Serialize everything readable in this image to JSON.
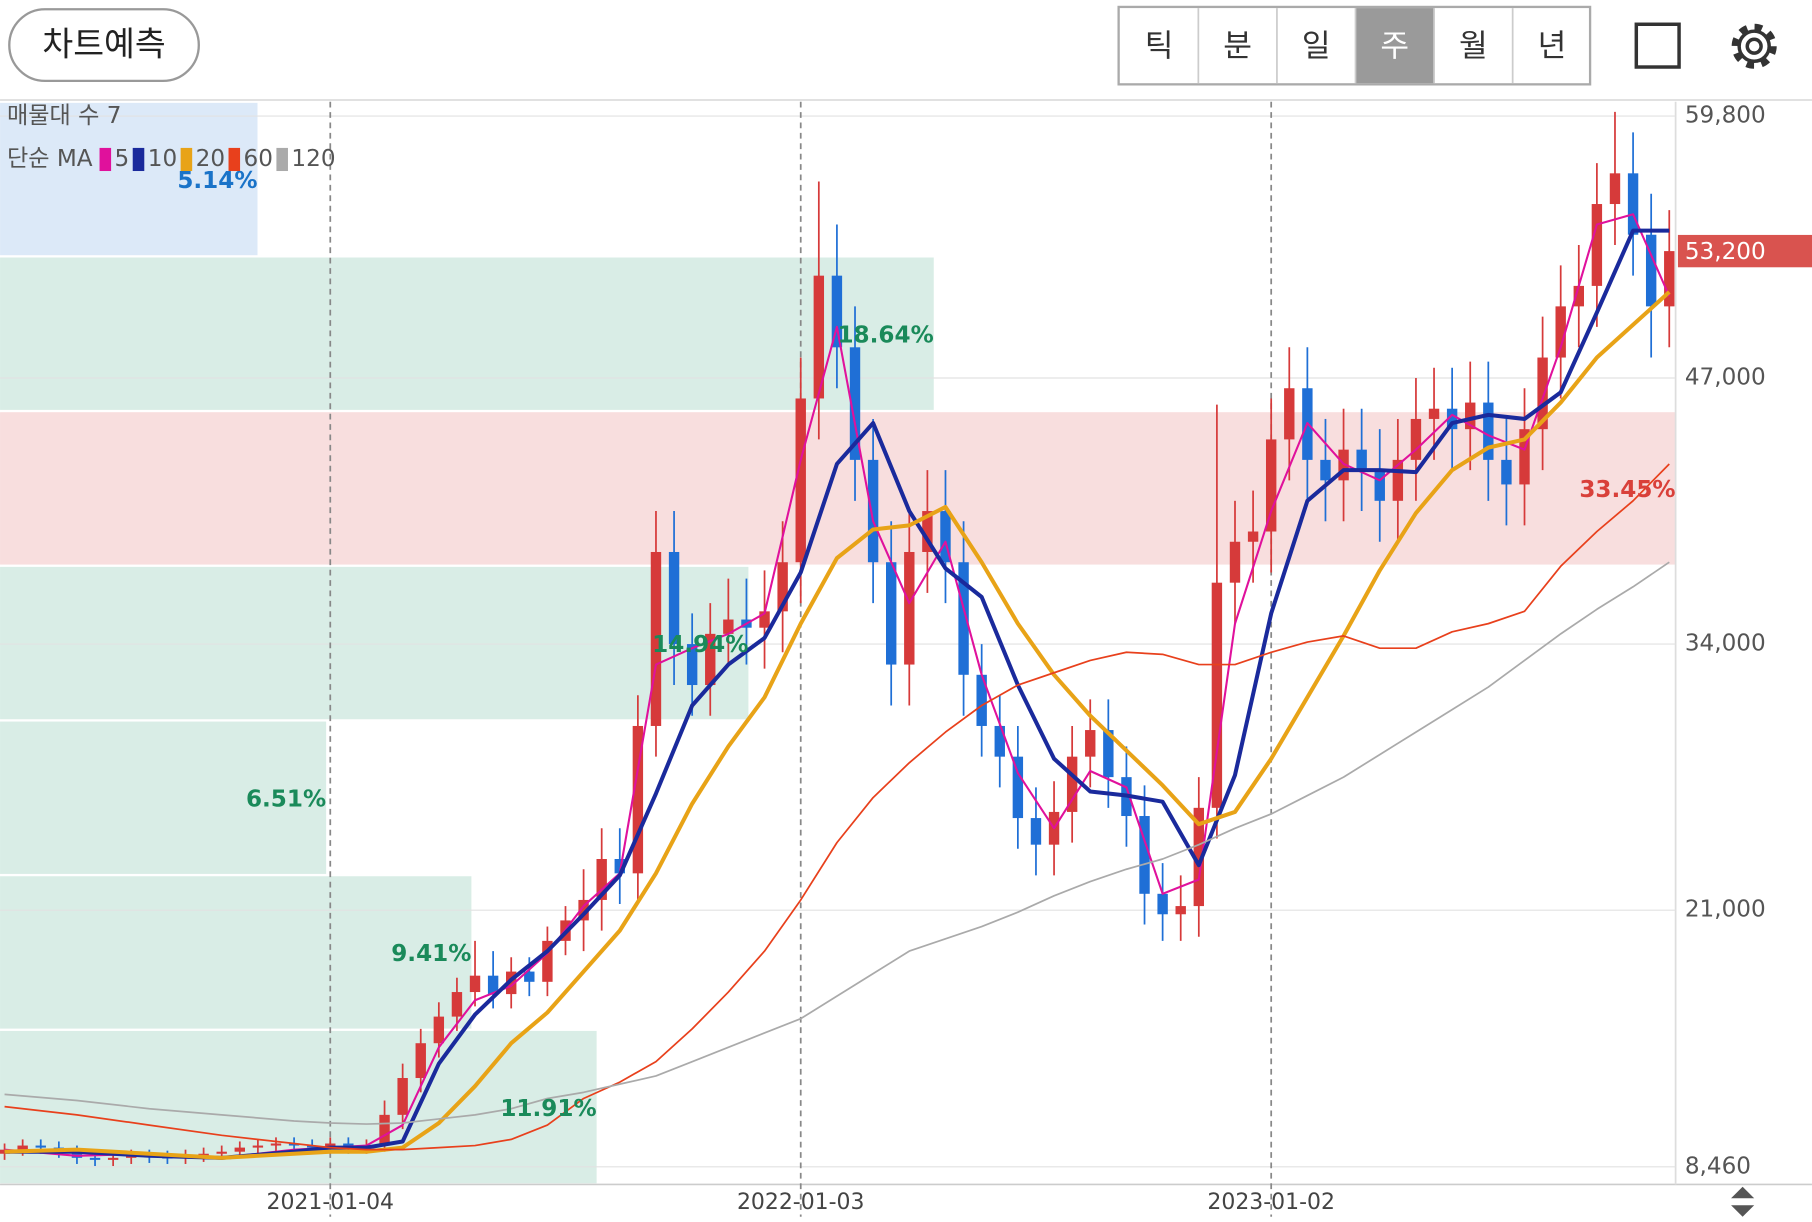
{
  "header": {
    "button": "차트예측",
    "tabs": [
      "틱",
      "분",
      "일",
      "주",
      "월",
      "년"
    ],
    "selected": 3
  },
  "chart_data": {
    "type": "candlestick",
    "xlim": [
      -0.5,
      184.7
    ],
    "xticks": [
      {
        "value": 36,
        "label": "2021-01-04"
      },
      {
        "value": 88,
        "label": "2022-01-03"
      },
      {
        "value": 140,
        "label": "2023-01-02"
      }
    ],
    "ylim": [
      7600,
      60500
    ],
    "yticks": [
      {
        "value": 59800,
        "label": "59,800"
      },
      {
        "value": 47000,
        "label": "47,000"
      },
      {
        "value": 34000,
        "label": "34,000"
      },
      {
        "value": 21000,
        "label": "21,000"
      },
      {
        "value": 8460,
        "label": "8,460"
      }
    ],
    "grid": true,
    "up_color": "#d63a3a",
    "down_color": "#1f6fd6",
    "last_price": {
      "value": 53200,
      "label": "53,200",
      "color": "#d9534f"
    },
    "candles": {
      "x": [
        0,
        2,
        4,
        6,
        8,
        10,
        12,
        14,
        16,
        18,
        20,
        22,
        24,
        26,
        28,
        30,
        32,
        34,
        36,
        38,
        40,
        42,
        44,
        46,
        48,
        50,
        52,
        54,
        56,
        58,
        60,
        62,
        64,
        66,
        68,
        70,
        72,
        74,
        76,
        78,
        80,
        82,
        84,
        86,
        88,
        90,
        92,
        94,
        96,
        98,
        100,
        102,
        104,
        106,
        108,
        110,
        112,
        114,
        116,
        118,
        120,
        122,
        124,
        126,
        128,
        130,
        132,
        134,
        136,
        138,
        140,
        142,
        144,
        146,
        148,
        150,
        152,
        154,
        156,
        158,
        160,
        162,
        164,
        166,
        168,
        170,
        172,
        174,
        176,
        178,
        180,
        182,
        184
      ],
      "open": [
        9100,
        9300,
        9500,
        9400,
        9200,
        8900,
        8800,
        8900,
        9000,
        8950,
        8900,
        9000,
        9100,
        9200,
        9400,
        9500,
        9600,
        9500,
        9400,
        9600,
        9400,
        9500,
        11000,
        12800,
        14500,
        15800,
        17000,
        17800,
        16900,
        18000,
        17500,
        19500,
        20500,
        21500,
        23500,
        22800,
        30000,
        38500,
        34000,
        32000,
        34500,
        35200,
        34800,
        35600,
        38000,
        46000,
        52000,
        48500,
        43000,
        38000,
        33000,
        38500,
        40500,
        38000,
        32500,
        30000,
        28500,
        25500,
        24200,
        25800,
        28500,
        29800,
        27500,
        25600,
        21800,
        20800,
        21200,
        26000,
        37000,
        39000,
        39500,
        44000,
        46500,
        43000,
        42000,
        43500,
        42500,
        41000,
        43000,
        45000,
        45500,
        44500,
        45800,
        43000,
        41800,
        44500,
        48000,
        50500,
        51500,
        55500,
        57000,
        54000,
        50500
      ],
      "high": [
        9600,
        9800,
        9800,
        9700,
        9500,
        9200,
        9200,
        9300,
        9300,
        9250,
        9300,
        9400,
        9500,
        9700,
        9800,
        9900,
        9900,
        9800,
        9900,
        9900,
        9800,
        11700,
        13500,
        15200,
        16500,
        17700,
        19500,
        19000,
        18700,
        18700,
        20200,
        21200,
        23000,
        25000,
        25000,
        31500,
        40500,
        40500,
        35500,
        36000,
        37200,
        37200,
        37600,
        40000,
        48000,
        56600,
        54500,
        50500,
        45000,
        40000,
        40500,
        42500,
        42500,
        40000,
        34000,
        31500,
        30000,
        27000,
        27300,
        30000,
        31300,
        31300,
        29000,
        27100,
        23300,
        22700,
        27500,
        45700,
        41000,
        41500,
        46000,
        48500,
        48500,
        45000,
        45500,
        45500,
        44500,
        45000,
        47000,
        47500,
        47500,
        47800,
        47800,
        45000,
        46500,
        50000,
        52500,
        53500,
        57500,
        60000,
        59000,
        56000,
        55200
      ],
      "low": [
        8800,
        9000,
        9100,
        8900,
        8600,
        8500,
        8500,
        8600,
        8650,
        8600,
        8600,
        8700,
        8800,
        8900,
        9100,
        9200,
        9200,
        9100,
        9100,
        9100,
        9100,
        9200,
        10300,
        12100,
        13800,
        15100,
        16300,
        16200,
        16200,
        16800,
        16800,
        18800,
        19000,
        20000,
        21300,
        21300,
        28500,
        32000,
        30500,
        30500,
        33000,
        33000,
        32800,
        33600,
        36000,
        44000,
        46500,
        41000,
        36000,
        31000,
        31000,
        36500,
        36000,
        30500,
        28500,
        27000,
        24000,
        22700,
        22700,
        24300,
        27000,
        26000,
        24100,
        20300,
        19500,
        19500,
        19700,
        24500,
        35000,
        37000,
        37500,
        42000,
        41000,
        40000,
        40000,
        40500,
        39000,
        39000,
        41000,
        43000,
        42500,
        42500,
        41000,
        39800,
        39800,
        42500,
        46000,
        48500,
        49500,
        53500,
        52000,
        48000,
        48500
      ],
      "close": [
        9300,
        9500,
        9400,
        9200,
        8900,
        8800,
        8900,
        9000,
        8950,
        8900,
        9000,
        9100,
        9200,
        9400,
        9500,
        9600,
        9500,
        9400,
        9600,
        9400,
        9500,
        11000,
        12800,
        14500,
        15800,
        17000,
        17800,
        16900,
        18000,
        17500,
        19500,
        20500,
        21500,
        23500,
        22800,
        30000,
        38500,
        34000,
        32000,
        34500,
        35200,
        34800,
        35600,
        38000,
        46000,
        52000,
        48500,
        43000,
        38000,
        33000,
        38500,
        40500,
        38000,
        32500,
        30000,
        28500,
        25500,
        24200,
        25800,
        28500,
        29800,
        27500,
        25600,
        21800,
        20800,
        21200,
        26000,
        37000,
        39000,
        39500,
        44000,
        46500,
        43000,
        42000,
        43500,
        42500,
        41000,
        43000,
        45000,
        45500,
        44500,
        45800,
        43000,
        41800,
        44500,
        48000,
        50500,
        51500,
        55500,
        57000,
        54000,
        50500,
        53200
      ]
    },
    "ma": {
      "title": "단순 MA",
      "x": [
        0,
        8,
        16,
        24,
        32,
        36,
        40,
        44,
        48,
        52,
        56,
        60,
        64,
        68,
        72,
        76,
        80,
        84,
        88,
        92,
        96,
        100,
        104,
        108,
        112,
        116,
        120,
        124,
        128,
        132,
        136,
        140,
        144,
        148,
        152,
        156,
        160,
        164,
        168,
        172,
        176,
        180,
        184
      ],
      "series": [
        {
          "name": "5",
          "color": "#e0119c",
          "width": 1.8,
          "values": [
            9300,
            9000,
            9100,
            8900,
            9300,
            9400,
            9500,
            10500,
            14300,
            16600,
            17300,
            18900,
            21200,
            22800,
            33000,
            33800,
            34500,
            35500,
            43000,
            49500,
            40000,
            36000,
            39000,
            32500,
            27700,
            25000,
            27800,
            27000,
            21800,
            22500,
            35000,
            40500,
            44800,
            42800,
            42000,
            43500,
            45200,
            44200,
            43500,
            48500,
            54500,
            55000,
            51000
          ]
        },
        {
          "name": "10",
          "color": "#1a2a9c",
          "width": 3.5,
          "values": [
            9200,
            9200,
            9000,
            8900,
            9200,
            9400,
            9400,
            9700,
            13500,
            15900,
            17600,
            19000,
            20800,
            22700,
            26700,
            31000,
            33000,
            34300,
            37500,
            42800,
            44800,
            40500,
            37700,
            36300,
            32000,
            28400,
            26800,
            26600,
            26300,
            23200,
            27600,
            35500,
            41000,
            42500,
            42500,
            42400,
            44800,
            45200,
            45000,
            46300,
            50200,
            54200,
            54200
          ]
        },
        {
          "name": "20",
          "color": "#e8a317",
          "width": 3.5,
          "values": [
            9200,
            9300,
            9100,
            8900,
            9100,
            9200,
            9200,
            9400,
            10600,
            12400,
            14500,
            16000,
            18000,
            20000,
            22800,
            26200,
            29000,
            31400,
            35000,
            38200,
            39600,
            39800,
            40700,
            38000,
            35000,
            32500,
            30500,
            28800,
            27100,
            25200,
            25800,
            28400,
            31400,
            34400,
            37600,
            40400,
            42500,
            43600,
            44000,
            45800,
            48000,
            49600,
            51200
          ]
        },
        {
          "name": "60",
          "color": "#e8401c",
          "width": 1.5,
          "values": [
            11400,
            11000,
            10500,
            10000,
            9600,
            9400,
            9300,
            9300,
            9400,
            9500,
            9800,
            10500,
            11800,
            12600,
            13600,
            15200,
            17000,
            19000,
            21500,
            24300,
            26500,
            28200,
            29700,
            31000,
            32000,
            32600,
            33200,
            33600,
            33500,
            33000,
            33000,
            33600,
            34100,
            34400,
            33800,
            33800,
            34600,
            35000,
            35600,
            37800,
            39500,
            41000,
            42800
          ]
        },
        {
          "name": "120",
          "color": "#aaaaaa",
          "width": 1.5,
          "values": [
            12000,
            11700,
            11300,
            11000,
            10700,
            10600,
            10550,
            10600,
            10800,
            11000,
            11300,
            11800,
            12100,
            12500,
            12900,
            13600,
            14300,
            15000,
            15700,
            16800,
            17900,
            19000,
            19600,
            20200,
            20900,
            21700,
            22400,
            23000,
            23500,
            24200,
            25000,
            25700,
            26600,
            27500,
            28600,
            29700,
            30800,
            31900,
            33200,
            34500,
            35700,
            36800,
            38000
          ]
        }
      ]
    },
    "volume_profile": {
      "title": "매물대 수 7",
      "values": [
        5.14,
        18.64,
        33.45,
        14.94,
        6.51,
        9.41,
        11.91
      ],
      "value_labels": [
        "5.14%",
        "18.64%",
        "33.45%",
        "14.94%",
        "6.51%",
        "9.41%",
        "11.91%"
      ],
      "colors": [
        "#dce9f8",
        "#d9ede6",
        "#f8dede",
        "#d9ede6",
        "#d9ede6",
        "#d9ede6",
        "#d9ede6"
      ],
      "label_colors": [
        "#1a73c8",
        "#1a8a5a",
        "#d9403a",
        "#1a8a5a",
        "#1a8a5a",
        "#1a8a5a",
        "#1a8a5a"
      ]
    }
  }
}
